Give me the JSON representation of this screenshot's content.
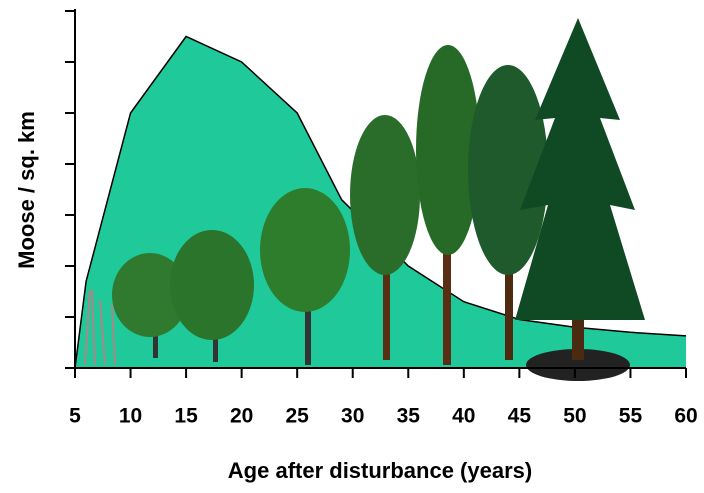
{
  "chart_data": {
    "type": "area",
    "x_label": "Age after disturbance (years)",
    "y_label": "Moose / sq. km",
    "x": [
      5,
      6,
      10,
      15,
      20,
      25,
      29,
      35,
      40,
      45,
      50,
      55,
      60
    ],
    "values": [
      0,
      1.7,
      5.0,
      6.5,
      6.0,
      5.0,
      3.3,
      2.0,
      1.3,
      0.95,
      0.8,
      0.7,
      0.63
    ],
    "color": "#1fc99a",
    "xlim": [
      5,
      60
    ],
    "xticks": [
      5,
      10,
      15,
      20,
      25,
      30,
      35,
      40,
      45,
      50,
      55,
      60
    ],
    "ylim": [
      0,
      7
    ],
    "yticks": [
      0,
      1,
      2,
      3,
      4,
      5,
      6,
      7
    ]
  }
}
